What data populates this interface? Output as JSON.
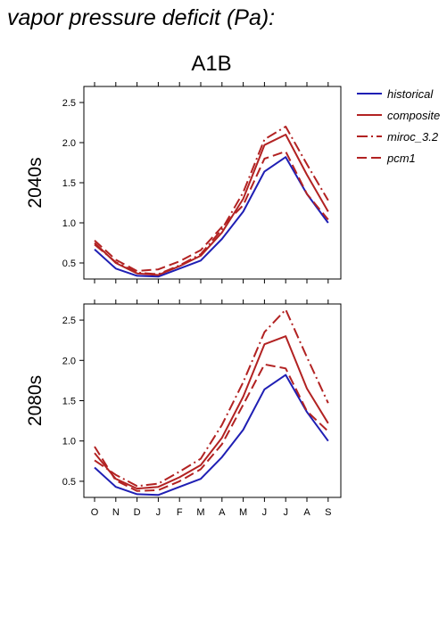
{
  "figure_title": "vapor pressure deficit (Pa):",
  "column_title": "A1B",
  "legend": [
    {
      "name": "historical",
      "color": "#1f1fb4",
      "dash": "solid"
    },
    {
      "name": "composite",
      "color": "#b22222",
      "dash": "solid"
    },
    {
      "name": "miroc_3.2",
      "color": "#b22222",
      "dash": "dashdot"
    },
    {
      "name": "pcm1",
      "color": "#b22222",
      "dash": "dashed"
    }
  ],
  "chart_data": [
    {
      "type": "line",
      "panel_label": "2040s",
      "categories": [
        "O",
        "N",
        "D",
        "J",
        "F",
        "M",
        "A",
        "M",
        "J",
        "J",
        "A",
        "S"
      ],
      "ylim": [
        0.3,
        2.7
      ],
      "yticks": [
        "0.5",
        "1.0",
        "1.5",
        "2.0",
        "2.5"
      ],
      "series": [
        {
          "name": "historical",
          "values": [
            0.67,
            0.43,
            0.34,
            0.33,
            0.43,
            0.53,
            0.8,
            1.14,
            1.64,
            1.82,
            1.36,
            1.0
          ]
        },
        {
          "name": "composite",
          "values": [
            0.75,
            0.5,
            0.37,
            0.35,
            0.46,
            0.59,
            0.88,
            1.3,
            1.97,
            2.1,
            1.6,
            1.14
          ]
        },
        {
          "name": "miroc_3.2",
          "values": [
            0.73,
            0.51,
            0.38,
            0.36,
            0.47,
            0.61,
            0.92,
            1.38,
            2.04,
            2.2,
            1.73,
            1.28
          ]
        },
        {
          "name": "pcm1",
          "values": [
            0.78,
            0.54,
            0.4,
            0.42,
            0.52,
            0.66,
            0.95,
            1.22,
            1.8,
            1.89,
            1.36,
            1.04
          ]
        }
      ]
    },
    {
      "type": "line",
      "panel_label": "2080s",
      "categories": [
        "O",
        "N",
        "D",
        "J",
        "F",
        "M",
        "A",
        "M",
        "J",
        "J",
        "A",
        "S"
      ],
      "ylim": [
        0.3,
        2.7
      ],
      "yticks": [
        "0.5",
        "1.0",
        "1.5",
        "2.0",
        "2.5"
      ],
      "series": [
        {
          "name": "historical",
          "values": [
            0.67,
            0.43,
            0.34,
            0.33,
            0.43,
            0.53,
            0.8,
            1.14,
            1.64,
            1.82,
            1.36,
            1.0
          ]
        },
        {
          "name": "composite",
          "values": [
            0.85,
            0.53,
            0.41,
            0.43,
            0.55,
            0.7,
            1.04,
            1.55,
            2.2,
            2.3,
            1.65,
            1.22
          ]
        },
        {
          "name": "miroc_3.2",
          "values": [
            0.76,
            0.58,
            0.44,
            0.47,
            0.62,
            0.78,
            1.2,
            1.73,
            2.35,
            2.63,
            2.04,
            1.47
          ]
        },
        {
          "name": "pcm1",
          "values": [
            0.93,
            0.51,
            0.38,
            0.39,
            0.5,
            0.65,
            0.96,
            1.45,
            1.95,
            1.9,
            1.37,
            1.12
          ]
        }
      ]
    }
  ]
}
